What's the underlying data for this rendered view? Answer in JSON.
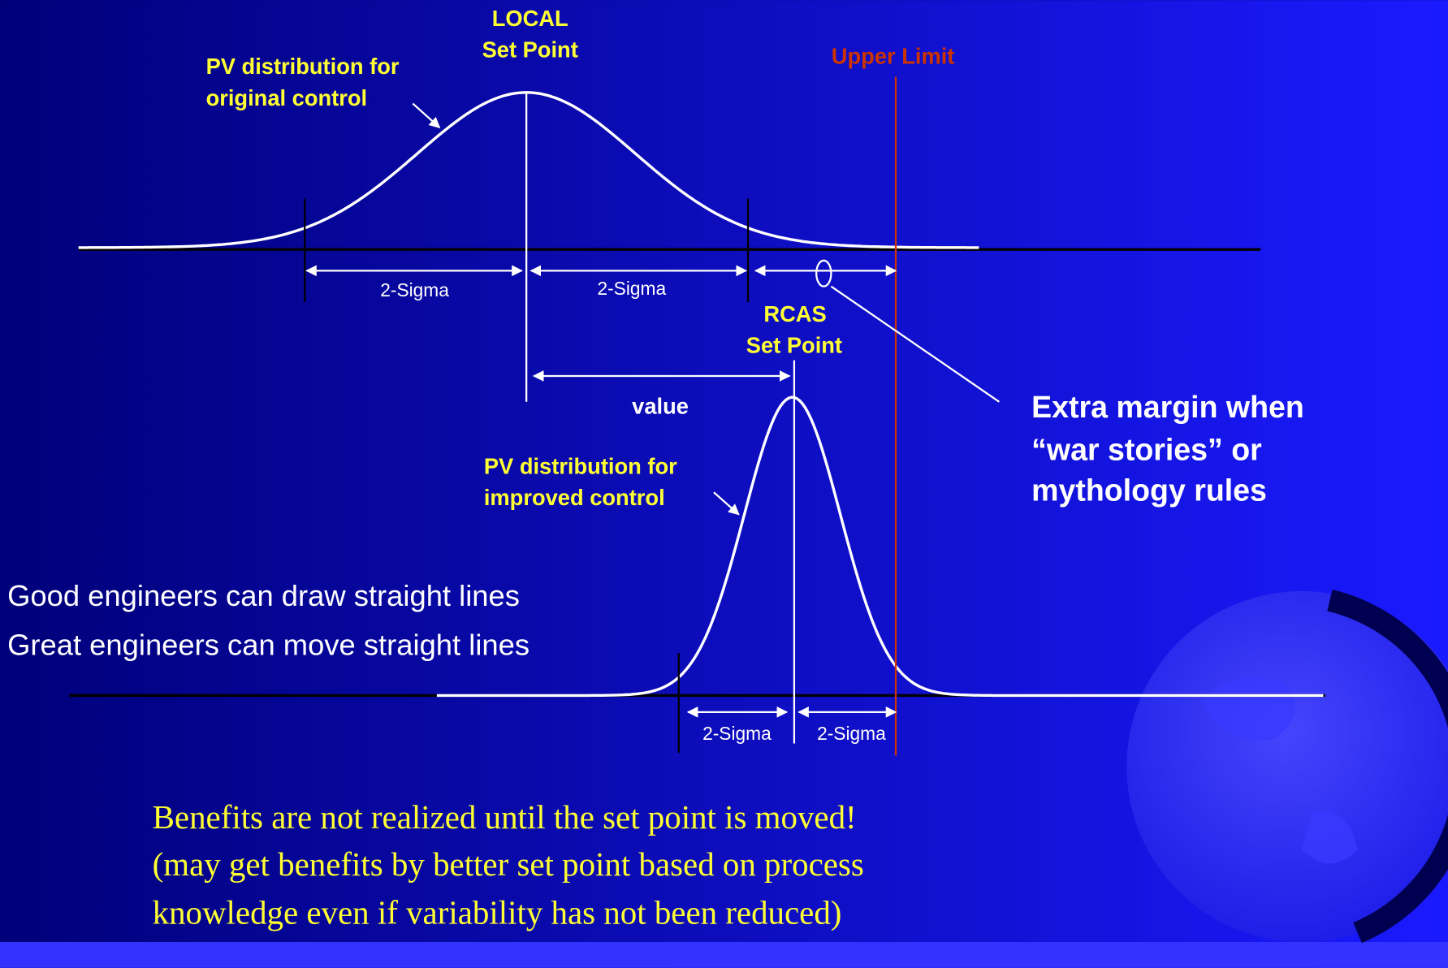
{
  "local_set_point": {
    "line1": "LOCAL",
    "line2": "Set Point"
  },
  "pv_original": {
    "line1": "PV distribution for",
    "line2": "original control"
  },
  "upper_limit": "Upper Limit",
  "top_sigma": [
    "2-Sigma",
    "2-Sigma"
  ],
  "rcas_set_point": {
    "line1": "RCAS",
    "line2": "Set Point"
  },
  "value_label": "value",
  "extra_margin": [
    "Extra margin when",
    "“war stories” or",
    "mythology rules"
  ],
  "pv_improved": {
    "line1": "PV distribution for",
    "line2": "improved control"
  },
  "quotes": [
    "Good engineers can draw straight lines",
    "Great engineers can move straight lines"
  ],
  "bottom_sigma": [
    "2-Sigma",
    "2-Sigma"
  ],
  "benefits": [
    "Benefits are not realized until the set point is moved!",
    "(may get benefits by better set point based on process",
    "knowledge even if variability has not been reduced)"
  ]
}
